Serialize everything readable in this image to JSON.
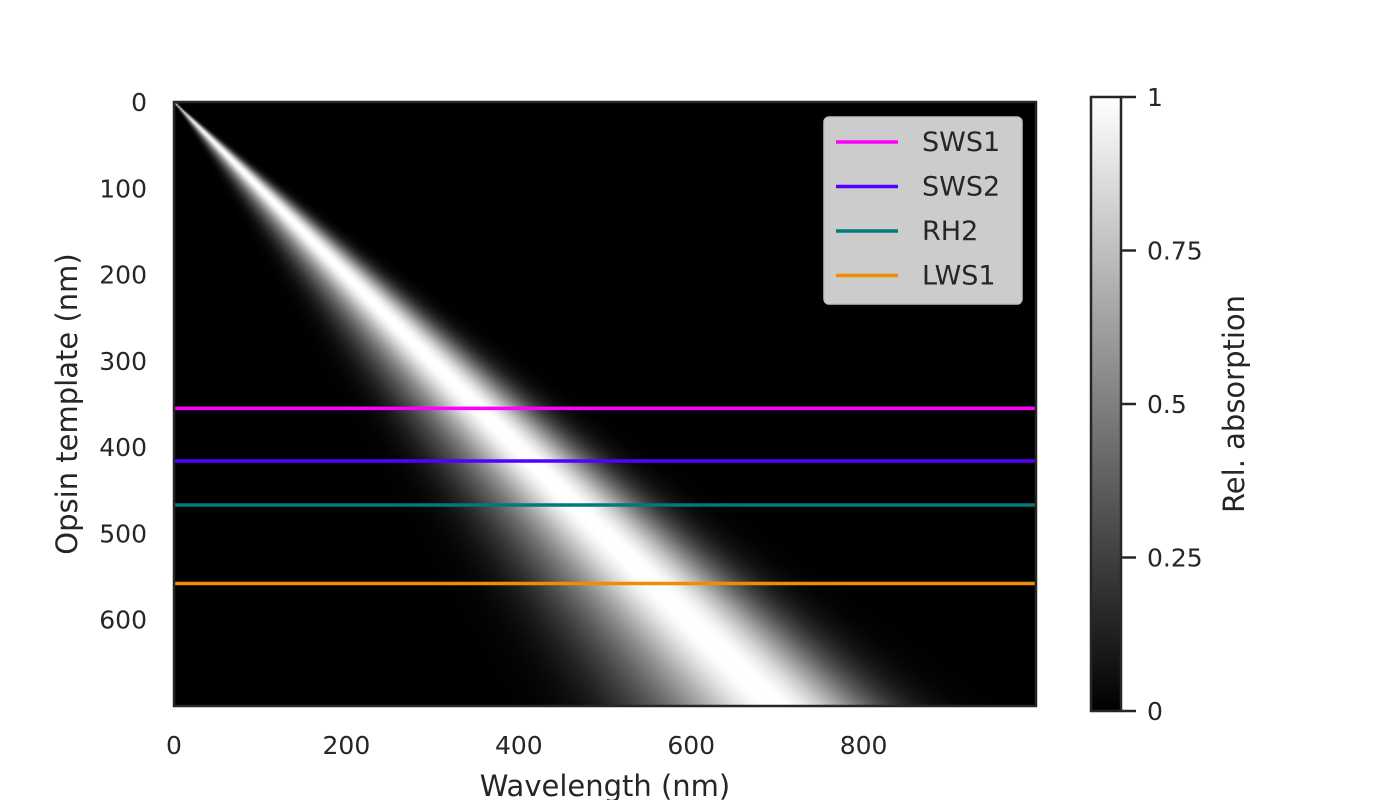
{
  "chart_data": {
    "type": "heatmap",
    "xlabel": "Wavelength (nm)",
    "ylabel": "Opsin template (nm)",
    "xlim": [
      0,
      1000
    ],
    "ylim": [
      700,
      0
    ],
    "x_ticks": [
      "0",
      "200",
      "400",
      "600",
      "800"
    ],
    "y_ticks": [
      "0",
      "100",
      "200",
      "300",
      "400",
      "500",
      "600"
    ],
    "heatmap": {
      "description_values": "Relative absorption of opsin template (row, peak wavelength in nm) at each wavelength (column)",
      "colormap": "gray",
      "vmin": 0,
      "vmax": 1,
      "peak_wavelength_equals_template": true,
      "colorbar": {
        "label": "Rel. absorption",
        "ticks": [
          "0",
          "0.25",
          "0.5",
          "0.75",
          "1"
        ]
      }
    },
    "series": [
      {
        "name": "SWS1",
        "type": "hline",
        "y": 355,
        "color": "#ff00ff"
      },
      {
        "name": "SWS2",
        "type": "hline",
        "y": 416,
        "color": "#5500ff"
      },
      {
        "name": "RH2",
        "type": "hline",
        "y": 467,
        "color": "#007b7b"
      },
      {
        "name": "LWS1",
        "type": "hline",
        "y": 558,
        "color": "#f28c00"
      }
    ],
    "legend_position": "top-right",
    "grid": false
  }
}
